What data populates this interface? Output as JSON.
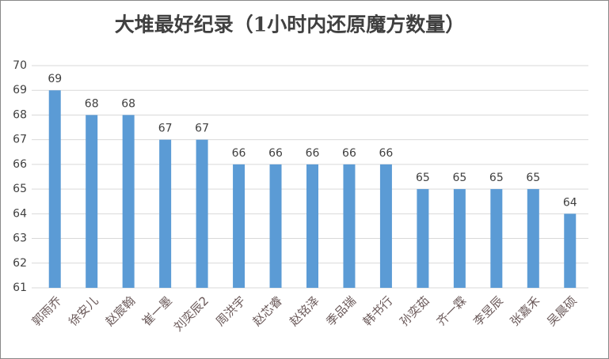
{
  "chart_data": {
    "type": "bar",
    "title": "大堆最好纪录（1小时内还原魔方数量）",
    "categories": [
      "郭雨乔",
      "徐安儿",
      "赵宸翰",
      "崔一墨",
      "刘奕辰2",
      "周洪宇",
      "赵芯睿",
      "赵铭泽",
      "季品瑞",
      "韩书行",
      "孙奕茹",
      "齐一霖",
      "李昱辰",
      "张嘉禾",
      "吴晨硕"
    ],
    "values": [
      69,
      68,
      68,
      67,
      67,
      66,
      66,
      66,
      66,
      66,
      65,
      65,
      65,
      65,
      64
    ],
    "color": "#5b9bd5",
    "ylim": [
      61,
      70
    ],
    "yticks": [
      61,
      62,
      63,
      64,
      65,
      66,
      67,
      68,
      69,
      70
    ],
    "grid": true
  }
}
